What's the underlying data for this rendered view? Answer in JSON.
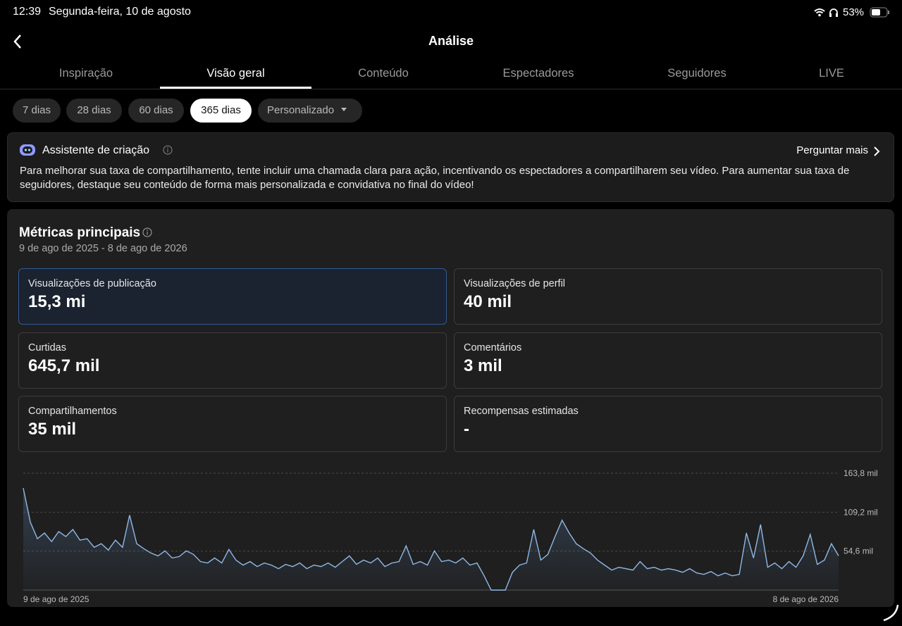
{
  "status": {
    "time": "12:39",
    "date": "Segunda-feira, 10 de agosto",
    "battery": "53%"
  },
  "header": {
    "title": "Análise"
  },
  "tabs": {
    "items": [
      "Inspiração",
      "Visão geral",
      "Conteúdo",
      "Espectadores",
      "Seguidores",
      "LIVE"
    ],
    "active": 1
  },
  "filters": {
    "items": [
      "7 dias",
      "28 dias",
      "60 dias",
      "365 dias",
      "Personalizado"
    ],
    "active": 3
  },
  "assistant": {
    "title": "Assistente de criação",
    "action": "Perguntar mais",
    "text": "Para melhorar sua taxa de compartilhamento, tente incluir uma chamada clara para ação, incentivando os espectadores a compartilharem seu vídeo. Para aumentar sua taxa de seguidores, destaque seu conteúdo de forma mais personalizada e convidativa no final do vídeo!"
  },
  "metrics": {
    "title": "Métricas principais",
    "date_range": "9 de ago de 2025 - 8 de ago de 2026",
    "selected": 0,
    "tiles": [
      {
        "label": "Visualizações de publicação",
        "value": "15,3 mi"
      },
      {
        "label": "Visualizações de perfil",
        "value": "40 mil"
      },
      {
        "label": "Curtidas",
        "value": "645,7 mil"
      },
      {
        "label": "Comentários",
        "value": "3 mil"
      },
      {
        "label": "Compartilhamentos",
        "value": "35 mil"
      },
      {
        "label": "Recompensas estimadas",
        "value": "-"
      }
    ]
  },
  "chart": {
    "type": "line",
    "color": "#8fb8e6",
    "grid": true,
    "xlabels": [
      "9 de ago de 2025",
      "8 de ago de 2026"
    ],
    "ylim": [
      0,
      163.8
    ],
    "yticks": [
      {
        "value": 54.6,
        "label": "54,6 mil"
      },
      {
        "value": 109.2,
        "label": "109,2 mil"
      },
      {
        "value": 163.8,
        "label": "163,8 mil"
      }
    ],
    "values": [
      143,
      95,
      72,
      80,
      68,
      82,
      75,
      85,
      70,
      72,
      60,
      65,
      56,
      70,
      60,
      105,
      65,
      58,
      52,
      48,
      55,
      45,
      47,
      55,
      50,
      40,
      38,
      45,
      38,
      57,
      42,
      35,
      40,
      33,
      38,
      35,
      30,
      36,
      33,
      38,
      30,
      35,
      33,
      38,
      32,
      40,
      48,
      36,
      42,
      38,
      45,
      33,
      38,
      40,
      62,
      36,
      40,
      35,
      55,
      40,
      42,
      38,
      45,
      35,
      38,
      20,
      0,
      0,
      0,
      25,
      35,
      38,
      85,
      42,
      50,
      75,
      98,
      80,
      65,
      58,
      52,
      42,
      35,
      28,
      32,
      30,
      28,
      40,
      30,
      32,
      28,
      30,
      28,
      25,
      30,
      24,
      22,
      26,
      20,
      24,
      20,
      22,
      80,
      45,
      92,
      32,
      38,
      30,
      40,
      32,
      48,
      78,
      36,
      42,
      65,
      48
    ]
  }
}
